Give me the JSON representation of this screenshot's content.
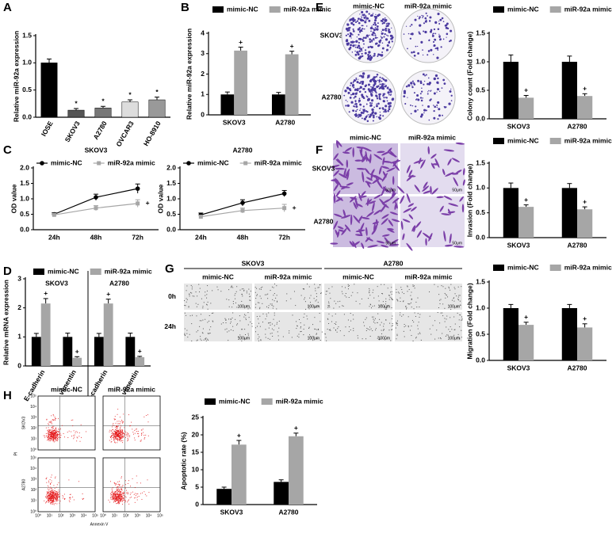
{
  "panel_labels": [
    "A",
    "B",
    "C",
    "D",
    "E",
    "F",
    "G",
    "H"
  ],
  "images": {
    "E": {
      "columns": [
        "mimic-NC",
        "miR-92a mimic"
      ],
      "rows": [
        "SKOV3",
        "A2780"
      ]
    },
    "F": {
      "columns": [
        "mimic-NC",
        "miR-92a mimic"
      ],
      "rows": [
        "SKOV3",
        "A2780"
      ],
      "scale": "50μm"
    },
    "G": {
      "groups": [
        "SKOV3",
        "A2780"
      ],
      "columns": [
        "mimic-NC",
        "miR-92a mimic",
        "mimic-NC",
        "miR-92a mimic"
      ],
      "rows": [
        "0h",
        "24h"
      ],
      "scale": "100μm"
    },
    "H": {
      "columns": [
        "mimic-NC",
        "miR-92a mimic"
      ],
      "rows": [
        "SKOV3",
        "A2780"
      ],
      "xlabel": "Annexin V",
      "ylabel": "PI",
      "ticks": [
        "10⁰",
        "10¹",
        "10²",
        "10³",
        "10⁴",
        "10⁵"
      ]
    }
  },
  "chart_data": [
    {
      "type": "bar",
      "ylabel": "Relative miR-92a expression",
      "categories": [
        "IOSE",
        "SKOV3",
        "A2780",
        "OVCAR3",
        "HO-8910"
      ],
      "values": [
        1.0,
        0.13,
        0.17,
        0.28,
        0.32
      ],
      "errors": [
        0.07,
        0.03,
        0.03,
        0.04,
        0.05
      ],
      "colors": [
        "#000000",
        "#555555",
        "#777777",
        "#dddddd",
        "#999999"
      ],
      "marks": [
        null,
        "*",
        "*",
        "*",
        "*"
      ],
      "ylim": [
        0,
        1.5
      ],
      "yticks": [
        {
          "value": 0,
          "label": "0.0"
        },
        {
          "value": 0.5,
          "label": "0.5"
        },
        {
          "value": 1,
          "label": "1.0"
        },
        {
          "value": 1.5,
          "label": "1.5"
        }
      ]
    },
    {
      "type": "grouped-bar",
      "ylabel": "Relative miR-92a expression",
      "categories": [
        "SKOV3",
        "A2780"
      ],
      "series": [
        {
          "name": "mimic-NC",
          "color": "#000000",
          "values": [
            1.0,
            1.0
          ],
          "errors": [
            0.12,
            0.1
          ]
        },
        {
          "name": "miR-92a mimic",
          "color": "#a6a6a6",
          "values": [
            3.15,
            2.97
          ],
          "errors": [
            0.17,
            0.15
          ],
          "marks": [
            "+",
            "+"
          ]
        }
      ],
      "ylim": [
        0,
        4
      ],
      "yticks": [
        0,
        1,
        2,
        3,
        4
      ]
    },
    {
      "type": "line",
      "title": "SKOV3",
      "ylabel": "OD value",
      "categories": [
        "24h",
        "48h",
        "72h"
      ],
      "series": [
        {
          "name": "mimic-NC",
          "color": "#000000",
          "marker": "circle",
          "values": [
            0.5,
            1.05,
            1.33
          ],
          "errors": [
            0.05,
            0.1,
            0.15
          ]
        },
        {
          "name": "miR-92a mimic",
          "color": "#a6a6a6",
          "marker": "square",
          "values": [
            0.48,
            0.7,
            0.85
          ],
          "errors": [
            0.04,
            0.08,
            0.12
          ],
          "marks": [
            null,
            null,
            "+"
          ]
        }
      ],
      "ylim": [
        0,
        2
      ],
      "yticks": [
        {
          "value": 0,
          "label": "0.0"
        },
        {
          "value": 0.5,
          "label": "0.5"
        },
        {
          "value": 1,
          "label": "1.0"
        },
        {
          "value": 1.5,
          "label": "1.5"
        },
        {
          "value": 2,
          "label": "2.0"
        }
      ]
    },
    {
      "type": "line",
      "title": "A2780",
      "ylabel": "OD value",
      "categories": [
        "24h",
        "48h",
        "72h"
      ],
      "series": [
        {
          "name": "mimic-NC",
          "color": "#000000",
          "marker": "circle",
          "values": [
            0.48,
            0.87,
            1.17
          ],
          "errors": [
            0.06,
            0.1,
            0.1
          ]
        },
        {
          "name": "miR-92a mimic",
          "color": "#a6a6a6",
          "marker": "square",
          "values": [
            0.42,
            0.62,
            0.7
          ],
          "errors": [
            0.05,
            0.08,
            0.12
          ],
          "marks": [
            null,
            null,
            "+"
          ]
        }
      ],
      "ylim": [
        0,
        2
      ],
      "yticks": [
        {
          "value": 0,
          "label": "0.0"
        },
        {
          "value": 0.5,
          "label": "0.5"
        },
        {
          "value": 1,
          "label": "1.0"
        },
        {
          "value": 1.5,
          "label": "1.5"
        },
        {
          "value": 2,
          "label": "2.0"
        }
      ]
    },
    {
      "type": "grouped-bar",
      "ylabel": "Relative mRNA expression",
      "groups": [
        "SKOV3",
        "A2780"
      ],
      "categories": [
        "E-cadherin",
        "vimentin",
        "E-cadherin",
        "vimentin"
      ],
      "series": [
        {
          "name": "mimic-NC",
          "color": "#000000",
          "values": [
            1.0,
            1.0,
            1.0,
            1.0
          ],
          "errors": [
            0.12,
            0.13,
            0.12,
            0.13
          ]
        },
        {
          "name": "miR-92a mimic",
          "color": "#a6a6a6",
          "values": [
            2.15,
            0.28,
            2.15,
            0.3
          ],
          "errors": [
            0.17,
            0.04,
            0.15,
            0.03
          ],
          "marks": [
            "+",
            "+",
            "+",
            "+"
          ]
        }
      ],
      "ylim": [
        0,
        3
      ],
      "yticks": [
        0,
        1,
        2,
        3
      ]
    },
    {
      "type": "grouped-bar",
      "ylabel": "Colony count (Fold change)",
      "categories": [
        "SKOV3",
        "A2780"
      ],
      "series": [
        {
          "name": "mimic-NC",
          "color": "#000000",
          "values": [
            1.0,
            1.0
          ],
          "errors": [
            0.12,
            0.1
          ]
        },
        {
          "name": "miR-92a mimic",
          "color": "#a6a6a6",
          "values": [
            0.37,
            0.4
          ],
          "errors": [
            0.04,
            0.04
          ],
          "marks": [
            "+",
            "+"
          ]
        }
      ],
      "ylim": [
        0,
        1.5
      ],
      "yticks": [
        {
          "value": 0,
          "label": "0.0"
        },
        {
          "value": 0.5,
          "label": "0.5"
        },
        {
          "value": 1,
          "label": "1.0"
        },
        {
          "value": 1.5,
          "label": "1.5"
        }
      ]
    },
    {
      "type": "grouped-bar",
      "ylabel": "Invasion (Fold change)",
      "categories": [
        "SKOV3",
        "A2780"
      ],
      "series": [
        {
          "name": "mimic-NC",
          "color": "#000000",
          "values": [
            1.0,
            1.0
          ],
          "errors": [
            0.1,
            0.09
          ]
        },
        {
          "name": "miR-92a mimic",
          "color": "#a6a6a6",
          "values": [
            0.62,
            0.57
          ],
          "errors": [
            0.04,
            0.05
          ],
          "marks": [
            "+",
            "+"
          ]
        }
      ],
      "ylim": [
        0,
        1.5
      ],
      "yticks": [
        {
          "value": 0,
          "label": "0.0"
        },
        {
          "value": 0.5,
          "label": "0.5"
        },
        {
          "value": 1,
          "label": "1.0"
        },
        {
          "value": 1.5,
          "label": "1.5"
        }
      ]
    },
    {
      "type": "grouped-bar",
      "ylabel": "Migration (Fold change)",
      "categories": [
        "SKOV3",
        "A2780"
      ],
      "series": [
        {
          "name": "mimic-NC",
          "color": "#000000",
          "values": [
            1.0,
            1.0
          ],
          "errors": [
            0.07,
            0.07
          ]
        },
        {
          "name": "miR-92a mimic",
          "color": "#a6a6a6",
          "values": [
            0.68,
            0.63
          ],
          "errors": [
            0.05,
            0.07
          ],
          "marks": [
            "+",
            "+"
          ]
        }
      ],
      "ylim": [
        0,
        1.5
      ],
      "yticks": [
        {
          "value": 0,
          "label": "0.0"
        },
        {
          "value": 0.5,
          "label": "0.5"
        },
        {
          "value": 1,
          "label": "1.0"
        },
        {
          "value": 1.5,
          "label": "1.5"
        }
      ]
    },
    {
      "type": "grouped-bar",
      "ylabel": "Apoptotic rate (%)",
      "categories": [
        "SKOV3",
        "A2780"
      ],
      "series": [
        {
          "name": "mimic-NC",
          "color": "#000000",
          "values": [
            4.5,
            6.5
          ],
          "errors": [
            0.5,
            0.6
          ]
        },
        {
          "name": "miR-92a mimic",
          "color": "#a6a6a6",
          "values": [
            17.2,
            19.6
          ],
          "errors": [
            1.2,
            0.9
          ],
          "marks": [
            "+",
            "+"
          ]
        }
      ],
      "ylim": [
        0,
        25
      ],
      "yticks": [
        0,
        5,
        10,
        15,
        20,
        25
      ]
    }
  ]
}
